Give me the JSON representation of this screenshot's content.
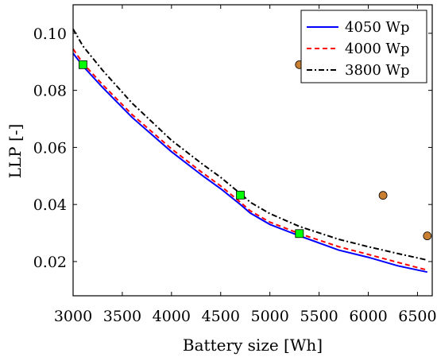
{
  "chart_data": {
    "type": "line",
    "title": "",
    "xlabel": "Battery size [Wh]",
    "ylabel": "LLP [-]",
    "xlim": [
      3000,
      6650
    ],
    "ylim": [
      0.008,
      0.11
    ],
    "xticks": [
      3000,
      3500,
      4000,
      4500,
      5000,
      5500,
      6000,
      6500
    ],
    "yticks": [
      0.02,
      0.04,
      0.06,
      0.08,
      0.1
    ],
    "ytick_labels": [
      "0.02",
      "0.04",
      "0.06",
      "0.08",
      "0.10"
    ],
    "grid": false,
    "legend_position": "top-right",
    "series": [
      {
        "name": "4050 Wp",
        "color": "#0000ff",
        "style": "solid",
        "x": [
          3000,
          3100,
          3300,
          3600,
          4000,
          4300,
          4500,
          4700,
          4800,
          5000,
          5300,
          5700,
          6000,
          6300,
          6600
        ],
        "y": [
          0.093,
          0.0885,
          0.081,
          0.0705,
          0.0585,
          0.0505,
          0.0455,
          0.04,
          0.037,
          0.033,
          0.029,
          0.024,
          0.0215,
          0.0185,
          0.0163
        ]
      },
      {
        "name": "4000 Wp",
        "color": "#ff0000",
        "style": "dashed",
        "x": [
          3000,
          3100,
          3300,
          3600,
          4000,
          4300,
          4500,
          4700,
          4800,
          5000,
          5300,
          5700,
          6000,
          6300,
          6600
        ],
        "y": [
          0.0945,
          0.0895,
          0.082,
          0.0715,
          0.0595,
          0.0515,
          0.0465,
          0.0408,
          0.0378,
          0.0338,
          0.0298,
          0.0252,
          0.0225,
          0.0197,
          0.017
        ]
      },
      {
        "name": "3800 Wp",
        "color": "#000000",
        "style": "dashdot",
        "x": [
          3000,
          3100,
          3300,
          3600,
          4000,
          4300,
          4500,
          4700,
          4800,
          5000,
          5300,
          5700,
          6000,
          6300,
          6600
        ],
        "y": [
          0.1015,
          0.0955,
          0.087,
          0.0755,
          0.0625,
          0.0545,
          0.0495,
          0.0438,
          0.0408,
          0.0368,
          0.0323,
          0.0278,
          0.0252,
          0.0228,
          0.0205
        ]
      }
    ],
    "markers": [
      {
        "group": "green-square",
        "color": "#00ff00",
        "shape": "square",
        "points": [
          [
            3100,
            0.089
          ],
          [
            4700,
            0.0433
          ],
          [
            5300,
            0.0298
          ]
        ]
      },
      {
        "group": "orange-circle",
        "color": "#c87f32",
        "shape": "circle",
        "points": [
          [
            5300,
            0.089
          ],
          [
            6150,
            0.0432
          ],
          [
            6600,
            0.029
          ]
        ]
      }
    ]
  }
}
